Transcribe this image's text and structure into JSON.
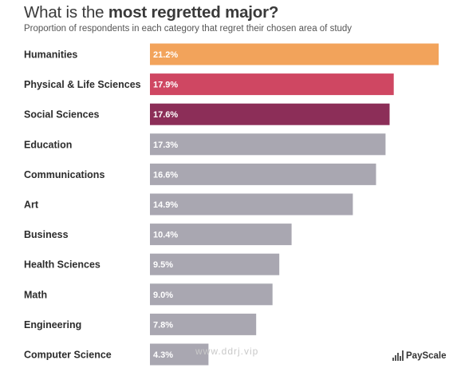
{
  "title": {
    "prefix": "What is the ",
    "bold": "most regretted major?"
  },
  "subtitle": "Proportion of respondents in each category that regret their chosen area of study",
  "chart_data": {
    "type": "bar",
    "orientation": "horizontal",
    "categories": [
      "Humanities",
      "Physical & Life Sciences",
      "Social Sciences",
      "Education",
      "Communications",
      "Art",
      "Business",
      "Health Sciences",
      "Math",
      "Engineering",
      "Computer Science"
    ],
    "values": [
      21.2,
      17.9,
      17.6,
      17.3,
      16.6,
      14.9,
      10.4,
      9.5,
      9.0,
      7.8,
      4.3
    ],
    "value_labels": [
      "21.2%",
      "17.9%",
      "17.6%",
      "17.3%",
      "16.6%",
      "14.9%",
      "10.4%",
      "9.5%",
      "9.0%",
      "7.8%",
      "4.3%"
    ],
    "colors": [
      "#f2a35b",
      "#cf4762",
      "#8c2e58",
      "#a9a7b1",
      "#a9a7b1",
      "#a9a7b1",
      "#a9a7b1",
      "#a9a7b1",
      "#a9a7b1",
      "#a9a7b1",
      "#a9a7b1"
    ],
    "xlim": [
      0,
      21.2
    ],
    "grid": false,
    "legend": "none"
  },
  "watermark": "www.ddrj.vip",
  "logo": {
    "text": "PayScale"
  }
}
